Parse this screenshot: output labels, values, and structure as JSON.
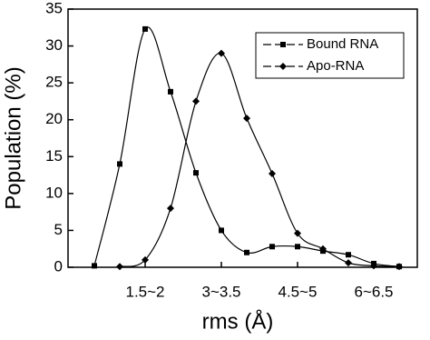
{
  "chart_data": {
    "type": "line",
    "x_label": "rms (Å)",
    "y_label": "Population (%)",
    "categories": [
      null,
      null,
      "1.5~2",
      null,
      null,
      "3~3.5",
      null,
      null,
      "4.5~5",
      null,
      null,
      "6~6.5",
      null
    ],
    "series": [
      {
        "name": "Bound RNA",
        "color": "#000000",
        "marker": "square",
        "values": [
          0.2,
          14,
          32.3,
          23.8,
          12.8,
          5,
          2,
          2.8,
          2.8,
          2.2,
          1.7,
          0.5,
          0.1
        ]
      },
      {
        "name": "Apo-RNA",
        "color": "#000000",
        "marker": "diamond",
        "values": [
          null,
          0.1,
          1,
          8,
          22.5,
          29,
          20.2,
          12.7,
          4.6,
          2.5,
          0.6,
          0.2,
          0.1
        ]
      }
    ],
    "ylim": [
      0,
      35
    ],
    "yticks": [
      0,
      5,
      10,
      15,
      20,
      25,
      30,
      35
    ],
    "legend": "upper right"
  }
}
